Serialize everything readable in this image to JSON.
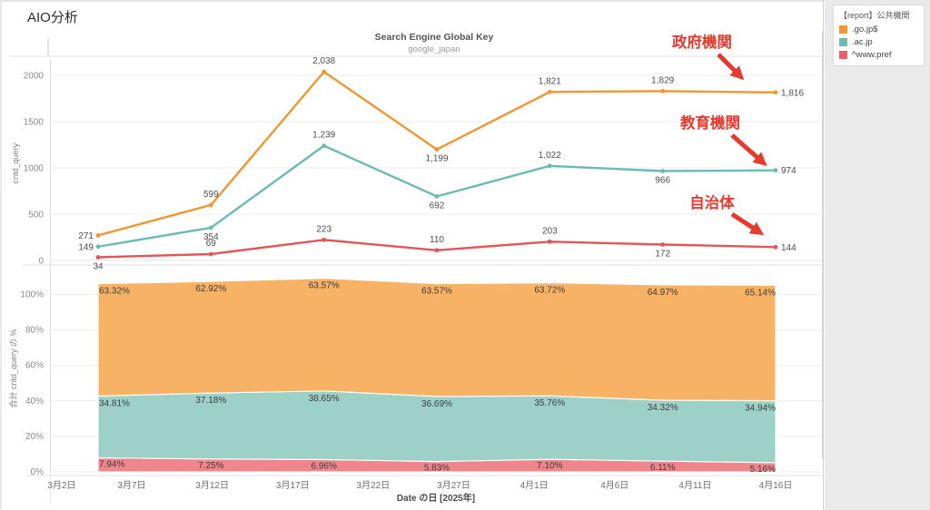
{
  "page": {
    "title": "AIO分析"
  },
  "chart": {
    "title": "Search Engine Global Key",
    "subtitle": "google_japan"
  },
  "legend": {
    "title": "【report】公共機関",
    "items": [
      {
        "label": ".go.jp$",
        "color": "#F2952F"
      },
      {
        "label": ".ac.jp",
        "color": "#6CBBB1"
      },
      {
        "label": "^www.pref",
        "color": "#EC5F6A"
      }
    ]
  },
  "annotations": [
    {
      "text": "政府機関",
      "color": "#E63A2E"
    },
    {
      "text": "教育機関",
      "color": "#E63A2E"
    },
    {
      "text": "自治体",
      "color": "#E63A2E"
    }
  ],
  "chart_data": [
    {
      "type": "line",
      "title": "Search Engine Global Key",
      "subtitle": "google_japan",
      "ylabel": "cntd_query",
      "ylim": [
        0,
        2150
      ],
      "yticks": [
        0,
        500,
        1000,
        1500,
        2000
      ],
      "grid": true,
      "series": [
        {
          "name": ".go.jp$",
          "color": "#F2952F",
          "values": [
            271,
            599,
            2038,
            1199,
            1821,
            1829,
            1816
          ],
          "point_labels": [
            "271",
            "599",
            "2,038",
            "1,199",
            "1,821",
            "1,829",
            "1,816"
          ],
          "label_positions": [
            "left",
            "above",
            "above",
            "below",
            "above",
            "above",
            "right"
          ]
        },
        {
          "name": ".ac.jp",
          "color": "#6CBBB1",
          "values": [
            149,
            354,
            1239,
            692,
            1022,
            966,
            974
          ],
          "point_labels": [
            "149",
            "354",
            "1,239",
            "692",
            "1,022",
            "966",
            "974"
          ],
          "label_positions": [
            "left",
            "below",
            "above",
            "below",
            "above",
            "below",
            "right"
          ]
        },
        {
          "name": "^www.pref",
          "color": "#E05659",
          "values": [
            34,
            69,
            223,
            110,
            203,
            172,
            144
          ],
          "point_labels": [
            "34",
            "69",
            "223",
            "110",
            "203",
            "172",
            "144"
          ],
          "label_positions": [
            "below",
            "above",
            "above",
            "above",
            "above",
            "below",
            "right"
          ]
        }
      ]
    },
    {
      "type": "area",
      "stacked": true,
      "stack_order": "bottom-to-top",
      "ylabel": "合計 cntd_query の %",
      "xlabel": "Date の日 [2025年]",
      "ylim": [
        0,
        110
      ],
      "yticks": [
        "0%",
        "20%",
        "40%",
        "60%",
        "80%",
        "100%"
      ],
      "x_tick_labels": [
        "3月2日",
        "3月7日",
        "3月12日",
        "3月17日",
        "3月22日",
        "3月27日",
        "4月1日",
        "4月6日",
        "4月11日",
        "4月16日"
      ],
      "series": [
        {
          "name": "^www.pref",
          "color": "#F0868C",
          "values": [
            7.94,
            7.25,
            6.96,
            5.83,
            7.1,
            6.11,
            5.16
          ],
          "labels": [
            "7.94%",
            "7.25%",
            "6.96%",
            "5.83%",
            "7.10%",
            "6.11%",
            "5.16%"
          ]
        },
        {
          "name": ".ac.jp",
          "color": "#9DD1C8",
          "values": [
            34.81,
            37.18,
            38.65,
            36.69,
            35.76,
            34.32,
            34.94
          ],
          "labels": [
            "34.81%",
            "37.18%",
            "38.65%",
            "36.69%",
            "35.76%",
            "34.32%",
            "34.94%"
          ]
        },
        {
          "name": ".go.jp$",
          "color": "#F8B266",
          "values": [
            63.32,
            62.92,
            63.57,
            63.57,
            63.72,
            64.97,
            65.14
          ],
          "labels": [
            "63.32%",
            "62.92%",
            "63.57%",
            "63.57%",
            "63.72%",
            "64.97%",
            "65.14%"
          ]
        }
      ]
    }
  ]
}
